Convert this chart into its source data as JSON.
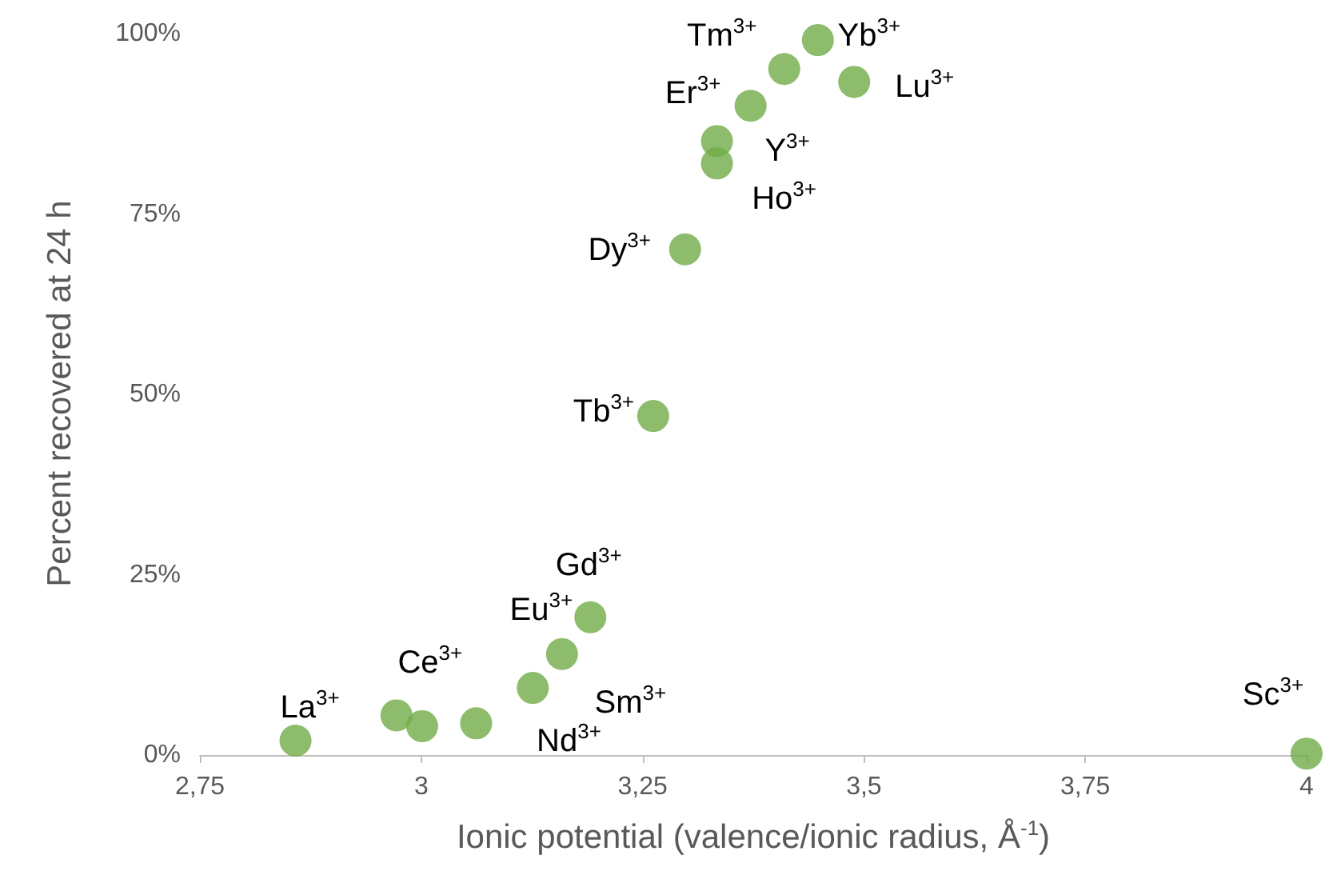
{
  "chart_data": {
    "type": "scatter",
    "xlabel": "Ionic potential (valence/ionic radius, Å$^{-1}$)",
    "ylabel": "Percent recovered at 24 h",
    "x": [
      2.858,
      2.972,
      3.001,
      3.062,
      3.126,
      3.159,
      3.191,
      3.262,
      3.298,
      3.334,
      3.334,
      3.372,
      3.41,
      3.448,
      3.489,
      4.0
    ],
    "series": [
      {
        "color": "#70ad47",
        "values": [
          2.0,
          5.5,
          4.0,
          4.4,
          9.3,
          14.0,
          19.1,
          47.0,
          70.1,
          82.0,
          85.1,
          90.0,
          95.1,
          99.1,
          93.3,
          0.2
        ]
      }
    ],
    "xlim": [
      2.75,
      4
    ],
    "xticks": [
      {
        "value": 2.75,
        "label": "2,75"
      },
      3,
      {
        "value": 3.25,
        "label": "3,25"
      },
      {
        "value": 3.5,
        "label": "3,5"
      },
      {
        "value": 3.75,
        "label": "3,75"
      },
      4
    ],
    "ylim": [
      0,
      100
    ],
    "yticks": [
      {
        "value": 0,
        "label": "0%"
      },
      {
        "value": 25,
        "label": "25%"
      },
      {
        "value": 50,
        "label": "50%"
      },
      {
        "value": 75,
        "label": "75%"
      },
      {
        "value": 100,
        "label": "100%"
      }
    ],
    "grid": false,
    "marker": "circle",
    "annotations": [
      {
        "text": "La$^{3+}$",
        "x": 2.858,
        "y": 2.0
      },
      {
        "text": "Ce$^{3+}$",
        "x": 2.972,
        "y": 5.5
      },
      {
        "text": "Nd$^{3+}$",
        "x": 3.062,
        "y": 4.4
      },
      {
        "text": "Sm$^{3+}$",
        "x": 3.126,
        "y": 9.3
      },
      {
        "text": "Eu$^{3+}$",
        "x": 3.159,
        "y": 14.0
      },
      {
        "text": "Gd$^{3+}$",
        "x": 3.191,
        "y": 19.1
      },
      {
        "text": "Tb$^{3+}$",
        "x": 3.262,
        "y": 47.0
      },
      {
        "text": "Dy$^{3+}$",
        "x": 3.298,
        "y": 70.1
      },
      {
        "text": "Ho$^{3+}$",
        "x": 3.334,
        "y": 82.0
      },
      {
        "text": "Y$^{3+}$",
        "x": 3.334,
        "y": 85.1
      },
      {
        "text": "Er$^{3+}$",
        "x": 3.372,
        "y": 90.0
      },
      {
        "text": "Tm$^{3+}$",
        "x": 3.41,
        "y": 95.1
      },
      {
        "text": "Yb$^{3+}$",
        "x": 3.448,
        "y": 99.1
      },
      {
        "text": "Lu$^{3+}$",
        "x": 3.489,
        "y": 93.3
      },
      {
        "text": "Sc$^{3+}$",
        "x": 4.0,
        "y": 0.2
      }
    ]
  }
}
